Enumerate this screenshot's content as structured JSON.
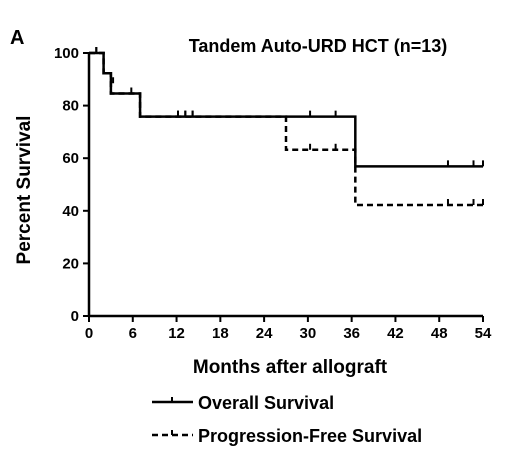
{
  "chart_data": {
    "type": "line",
    "panel_label": "A",
    "title": "Tandem Auto-URD HCT (n=13)",
    "xlabel": "Months after allograft",
    "ylabel": "Percent Survival",
    "xlim": [
      0,
      54
    ],
    "ylim": [
      0,
      100
    ],
    "x_ticks": [
      0,
      6,
      12,
      18,
      24,
      30,
      36,
      42,
      48,
      54
    ],
    "y_ticks": [
      0,
      20,
      40,
      60,
      80,
      100
    ],
    "grid": false,
    "legend_position": "bottom",
    "series": [
      {
        "name": "Overall Survival",
        "line_style": "solid",
        "steps": [
          {
            "x": 0,
            "y": 100
          },
          {
            "x": 2,
            "y": 92.3
          },
          {
            "x": 3,
            "y": 84.6
          },
          {
            "x": 7,
            "y": 75.8
          },
          {
            "x": 36.5,
            "y": 56.9
          },
          {
            "x": 54,
            "y": 56.9
          }
        ],
        "censored": [
          {
            "x": 1,
            "y": 100
          },
          {
            "x": 12.2,
            "y": 75.8
          },
          {
            "x": 13.2,
            "y": 75.8
          },
          {
            "x": 14.2,
            "y": 75.8
          },
          {
            "x": 30.3,
            "y": 75.8
          },
          {
            "x": 33.8,
            "y": 75.8
          },
          {
            "x": 49.2,
            "y": 56.9
          },
          {
            "x": 52.7,
            "y": 56.9
          },
          {
            "x": 54,
            "y": 56.9
          }
        ]
      },
      {
        "name": "Progression-Free Survival",
        "line_style": "dashed",
        "steps": [
          {
            "x": 0,
            "y": 100
          },
          {
            "x": 2,
            "y": 92.3
          },
          {
            "x": 3,
            "y": 84.6
          },
          {
            "x": 7,
            "y": 75.8
          },
          {
            "x": 27,
            "y": 63.2
          },
          {
            "x": 36.5,
            "y": 42.2
          },
          {
            "x": 54,
            "y": 42.2
          }
        ],
        "censored": [
          {
            "x": 1,
            "y": 100
          },
          {
            "x": 3.3,
            "y": 88.5
          },
          {
            "x": 5.8,
            "y": 84.6
          },
          {
            "x": 12.2,
            "y": 75.8
          },
          {
            "x": 13.2,
            "y": 75.8
          },
          {
            "x": 14.2,
            "y": 75.8
          },
          {
            "x": 30.3,
            "y": 63.2
          },
          {
            "x": 33.8,
            "y": 63.2
          },
          {
            "x": 49.2,
            "y": 42.2
          },
          {
            "x": 52.7,
            "y": 42.2
          },
          {
            "x": 54,
            "y": 42.2
          }
        ]
      }
    ]
  }
}
